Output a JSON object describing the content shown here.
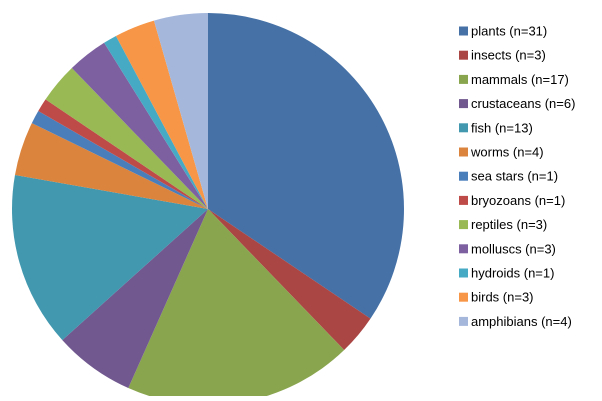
{
  "chart_data": {
    "type": "pie",
    "title": "",
    "categories": [
      "plants (n=31)",
      "insects (n=3)",
      "mammals (n=17)",
      "crustaceans (n=6)",
      "fish (n=13)",
      "worms (n=4)",
      "sea stars (n=1)",
      "bryozoans (n=1)",
      "reptiles (n=3)",
      "molluscs (n=3)",
      "hydroids (n=1)",
      "birds (n=3)",
      "amphibians (n=4)"
    ],
    "values": [
      31,
      3,
      17,
      6,
      13,
      4,
      1,
      1,
      3,
      3,
      1,
      3,
      4
    ],
    "colors": [
      "#4571A7",
      "#AA4644",
      "#89A54E",
      "#71588F",
      "#4198AF",
      "#DB843D",
      "#4A7EBB",
      "#BE4B48",
      "#98B954",
      "#7D60A0",
      "#46AAC5",
      "#F79646",
      "#A5B8DC"
    ],
    "legend_position": "right",
    "start_angle": "top",
    "direction": "clockwise"
  }
}
